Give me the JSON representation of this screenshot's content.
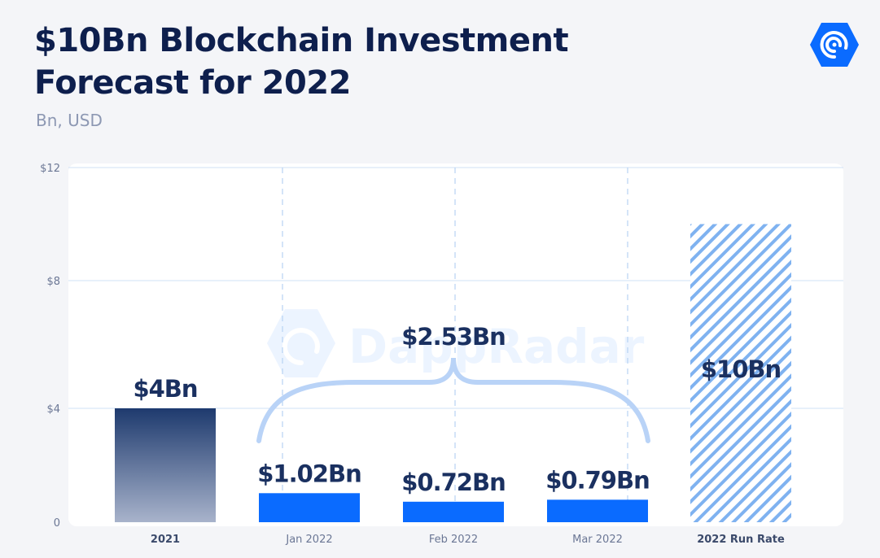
{
  "header": {
    "title_line1": "$10Bn Blockchain Investment",
    "title_line2": "Forecast for 2022",
    "subtitle": "Bn, USD"
  },
  "logo": {
    "name": "dappradar-logo-icon",
    "watermark_text": "DappRadar"
  },
  "colors": {
    "navy": "#1e3a6e",
    "blue": "#0a6bff",
    "light_blue": "#b9d3f7",
    "stripe": "#7fb2f0",
    "text": "#1a3060",
    "axis": "#6b7795"
  },
  "chart_data": {
    "type": "bar",
    "categories": [
      "2021",
      "Jan 2022",
      "Feb 2022",
      "Mar 2022",
      "2022 Run Rate"
    ],
    "values": [
      4,
      1.02,
      0.72,
      0.79,
      10
    ],
    "data_labels": [
      "$4Bn",
      "$1.02Bn",
      "$0.72Bn",
      "$0.79Bn",
      "$10Bn"
    ],
    "bar_styles": [
      "navy-gradient",
      "solid-blue",
      "solid-blue",
      "solid-blue",
      "hatched"
    ],
    "bold_categories": [
      "2021",
      "2022 Run Rate"
    ],
    "yticks": [
      0,
      4,
      8,
      12
    ],
    "ytick_labels": [
      "0",
      "$4",
      "$8",
      "$12"
    ],
    "ylim": [
      0,
      12
    ],
    "grid": true,
    "annotation": {
      "text": "$2.53Bn",
      "spans": [
        "Jan 2022",
        "Mar 2022"
      ],
      "shape": "curly-brace"
    },
    "xlabel": "",
    "ylabel": ""
  }
}
